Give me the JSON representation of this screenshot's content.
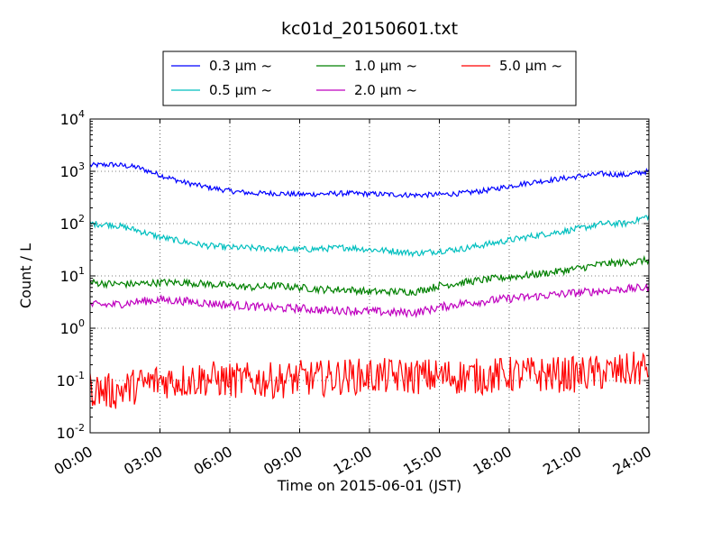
{
  "chart_data": {
    "type": "line",
    "title": "kc01d_20150601.txt",
    "xlabel": "Time on 2015-06-01 (JST)",
    "ylabel": "Count / L",
    "yscale": "log",
    "ylim": [
      0.01,
      10000
    ],
    "xlim": [
      "00:00",
      "24:00"
    ],
    "x_tick_labels": [
      "00:00",
      "03:00",
      "06:00",
      "09:00",
      "12:00",
      "15:00",
      "18:00",
      "21:00",
      "24:00"
    ],
    "y_tick_labels": [
      {
        "base": "10",
        "exp": "-2"
      },
      {
        "base": "10",
        "exp": "-1"
      },
      {
        "base": "10",
        "exp": "0"
      },
      {
        "base": "10",
        "exp": "1"
      },
      {
        "base": "10",
        "exp": "2"
      },
      {
        "base": "10",
        "exp": "3"
      },
      {
        "base": "10",
        "exp": "4"
      }
    ],
    "grid": true,
    "legend_position": "top-center",
    "x": [
      "00:00",
      "01:00",
      "02:00",
      "03:00",
      "04:00",
      "05:00",
      "06:00",
      "07:00",
      "08:00",
      "09:00",
      "10:00",
      "11:00",
      "12:00",
      "13:00",
      "14:00",
      "15:00",
      "16:00",
      "17:00",
      "18:00",
      "19:00",
      "20:00",
      "21:00",
      "22:00",
      "23:00",
      "24:00"
    ],
    "series": [
      {
        "name": "0.3 μm ~",
        "color": "#0000ff",
        "noise": 0.05,
        "values": [
          1300,
          1350,
          1200,
          850,
          620,
          500,
          420,
          380,
          380,
          360,
          370,
          380,
          370,
          360,
          350,
          360,
          380,
          430,
          520,
          620,
          700,
          800,
          900,
          850,
          1000
        ]
      },
      {
        "name": "0.5 μm ~",
        "color": "#00bfbf",
        "noise": 0.06,
        "values": [
          100,
          95,
          75,
          55,
          45,
          38,
          35,
          34,
          33,
          32,
          33,
          35,
          32,
          30,
          27,
          30,
          33,
          40,
          48,
          58,
          68,
          80,
          100,
          100,
          140
        ]
      },
      {
        "name": "1.0 μm ~",
        "color": "#008000",
        "noise": 0.07,
        "values": [
          7.5,
          7.0,
          7.0,
          7.5,
          7.5,
          7.0,
          6.5,
          6.0,
          6.5,
          6.0,
          5.5,
          5.5,
          5.0,
          5.0,
          5.0,
          6.5,
          7.5,
          8.5,
          9.5,
          10.5,
          12,
          14,
          17,
          18,
          20
        ]
      },
      {
        "name": "2.0 μm ~",
        "color": "#bf00bf",
        "noise": 0.08,
        "values": [
          2.8,
          2.8,
          3.2,
          3.5,
          3.3,
          3.0,
          2.8,
          2.6,
          2.4,
          2.4,
          2.2,
          2.2,
          2.1,
          2.0,
          2.0,
          2.5,
          3.0,
          3.3,
          3.7,
          4.0,
          4.4,
          4.8,
          5.2,
          5.6,
          6.0
        ]
      },
      {
        "name": "5.0 μm ~",
        "color": "#ff0000",
        "noise": 0.35,
        "values": [
          0.07,
          0.06,
          0.08,
          0.1,
          0.1,
          0.11,
          0.1,
          0.1,
          0.1,
          0.11,
          0.11,
          0.12,
          0.12,
          0.12,
          0.12,
          0.12,
          0.12,
          0.12,
          0.13,
          0.13,
          0.13,
          0.13,
          0.14,
          0.15,
          0.18
        ]
      }
    ]
  }
}
